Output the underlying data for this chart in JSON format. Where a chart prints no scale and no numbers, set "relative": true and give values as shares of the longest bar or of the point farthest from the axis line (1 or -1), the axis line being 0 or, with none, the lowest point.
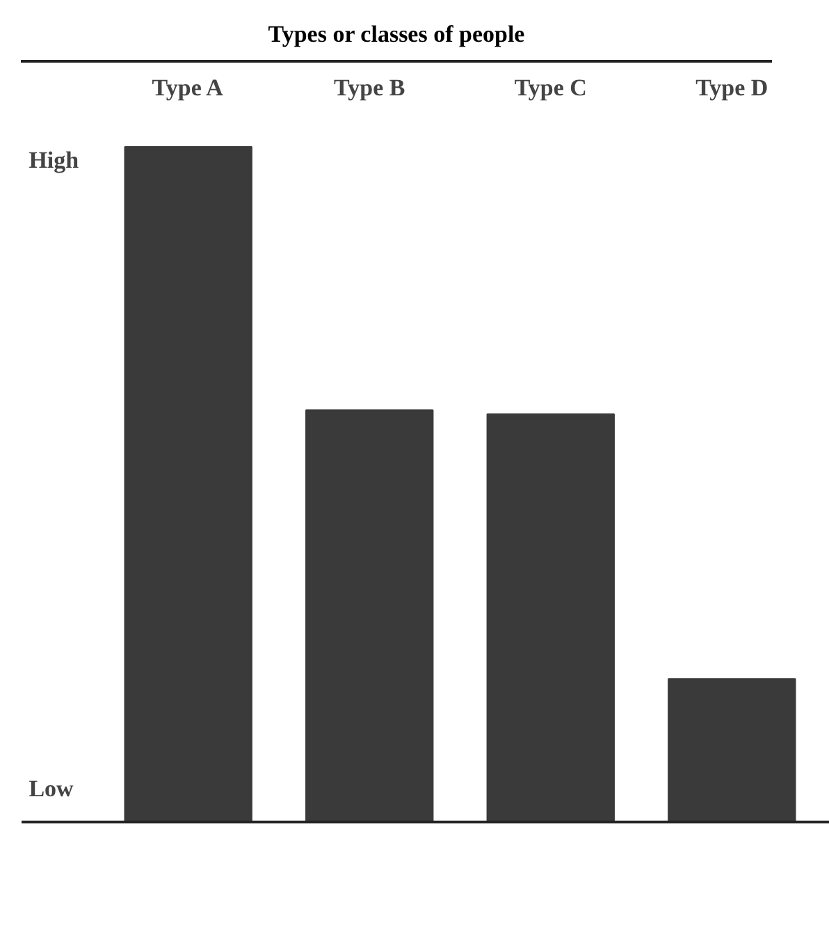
{
  "chart_data": {
    "type": "bar",
    "title": "Types or classes of people",
    "categories": [
      "Type A",
      "Type B",
      "Type C",
      "Type D"
    ],
    "values": [
      1,
      0.61,
      0.604,
      0.212
    ],
    "color": "#3a3a3a",
    "relative": true,
    "grid": false,
    "annotations": [
      "High",
      "Low"
    ]
  }
}
